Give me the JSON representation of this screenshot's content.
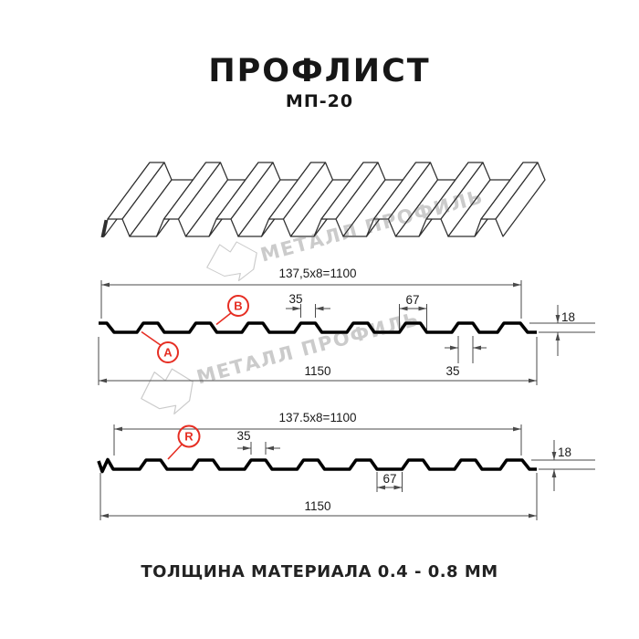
{
  "header": {
    "title": "ПРОФЛИСТ",
    "subtitle": "МП-20"
  },
  "footer": {
    "note": "ТОЛЩИНА МАТЕРИАЛА 0.4 - 0.8 ММ"
  },
  "watermark": {
    "brand": "МЕТАЛЛ ПРОФИЛЬ"
  },
  "colors": {
    "profile_line": "#000000",
    "sheet_line": "#2f2f2f",
    "dim_line": "#4a4a4a",
    "text": "#1a1a1a",
    "accent_red": "#e62e23",
    "watermark_gray": "#cbcbcb"
  },
  "section_a": {
    "pitch_dim": "137,5x8=1100",
    "rib_top_width": "35",
    "rib_bottom_width": "67",
    "height": "18",
    "rib_top_width_right": "35",
    "overall_width": "1150",
    "label_a": "А",
    "label_b": "В"
  },
  "section_r": {
    "pitch_dim": "137.5x8=1100",
    "rib_top_width": "35",
    "valley_width": "67",
    "height": "18",
    "overall_width": "1150",
    "label_r": "R"
  }
}
